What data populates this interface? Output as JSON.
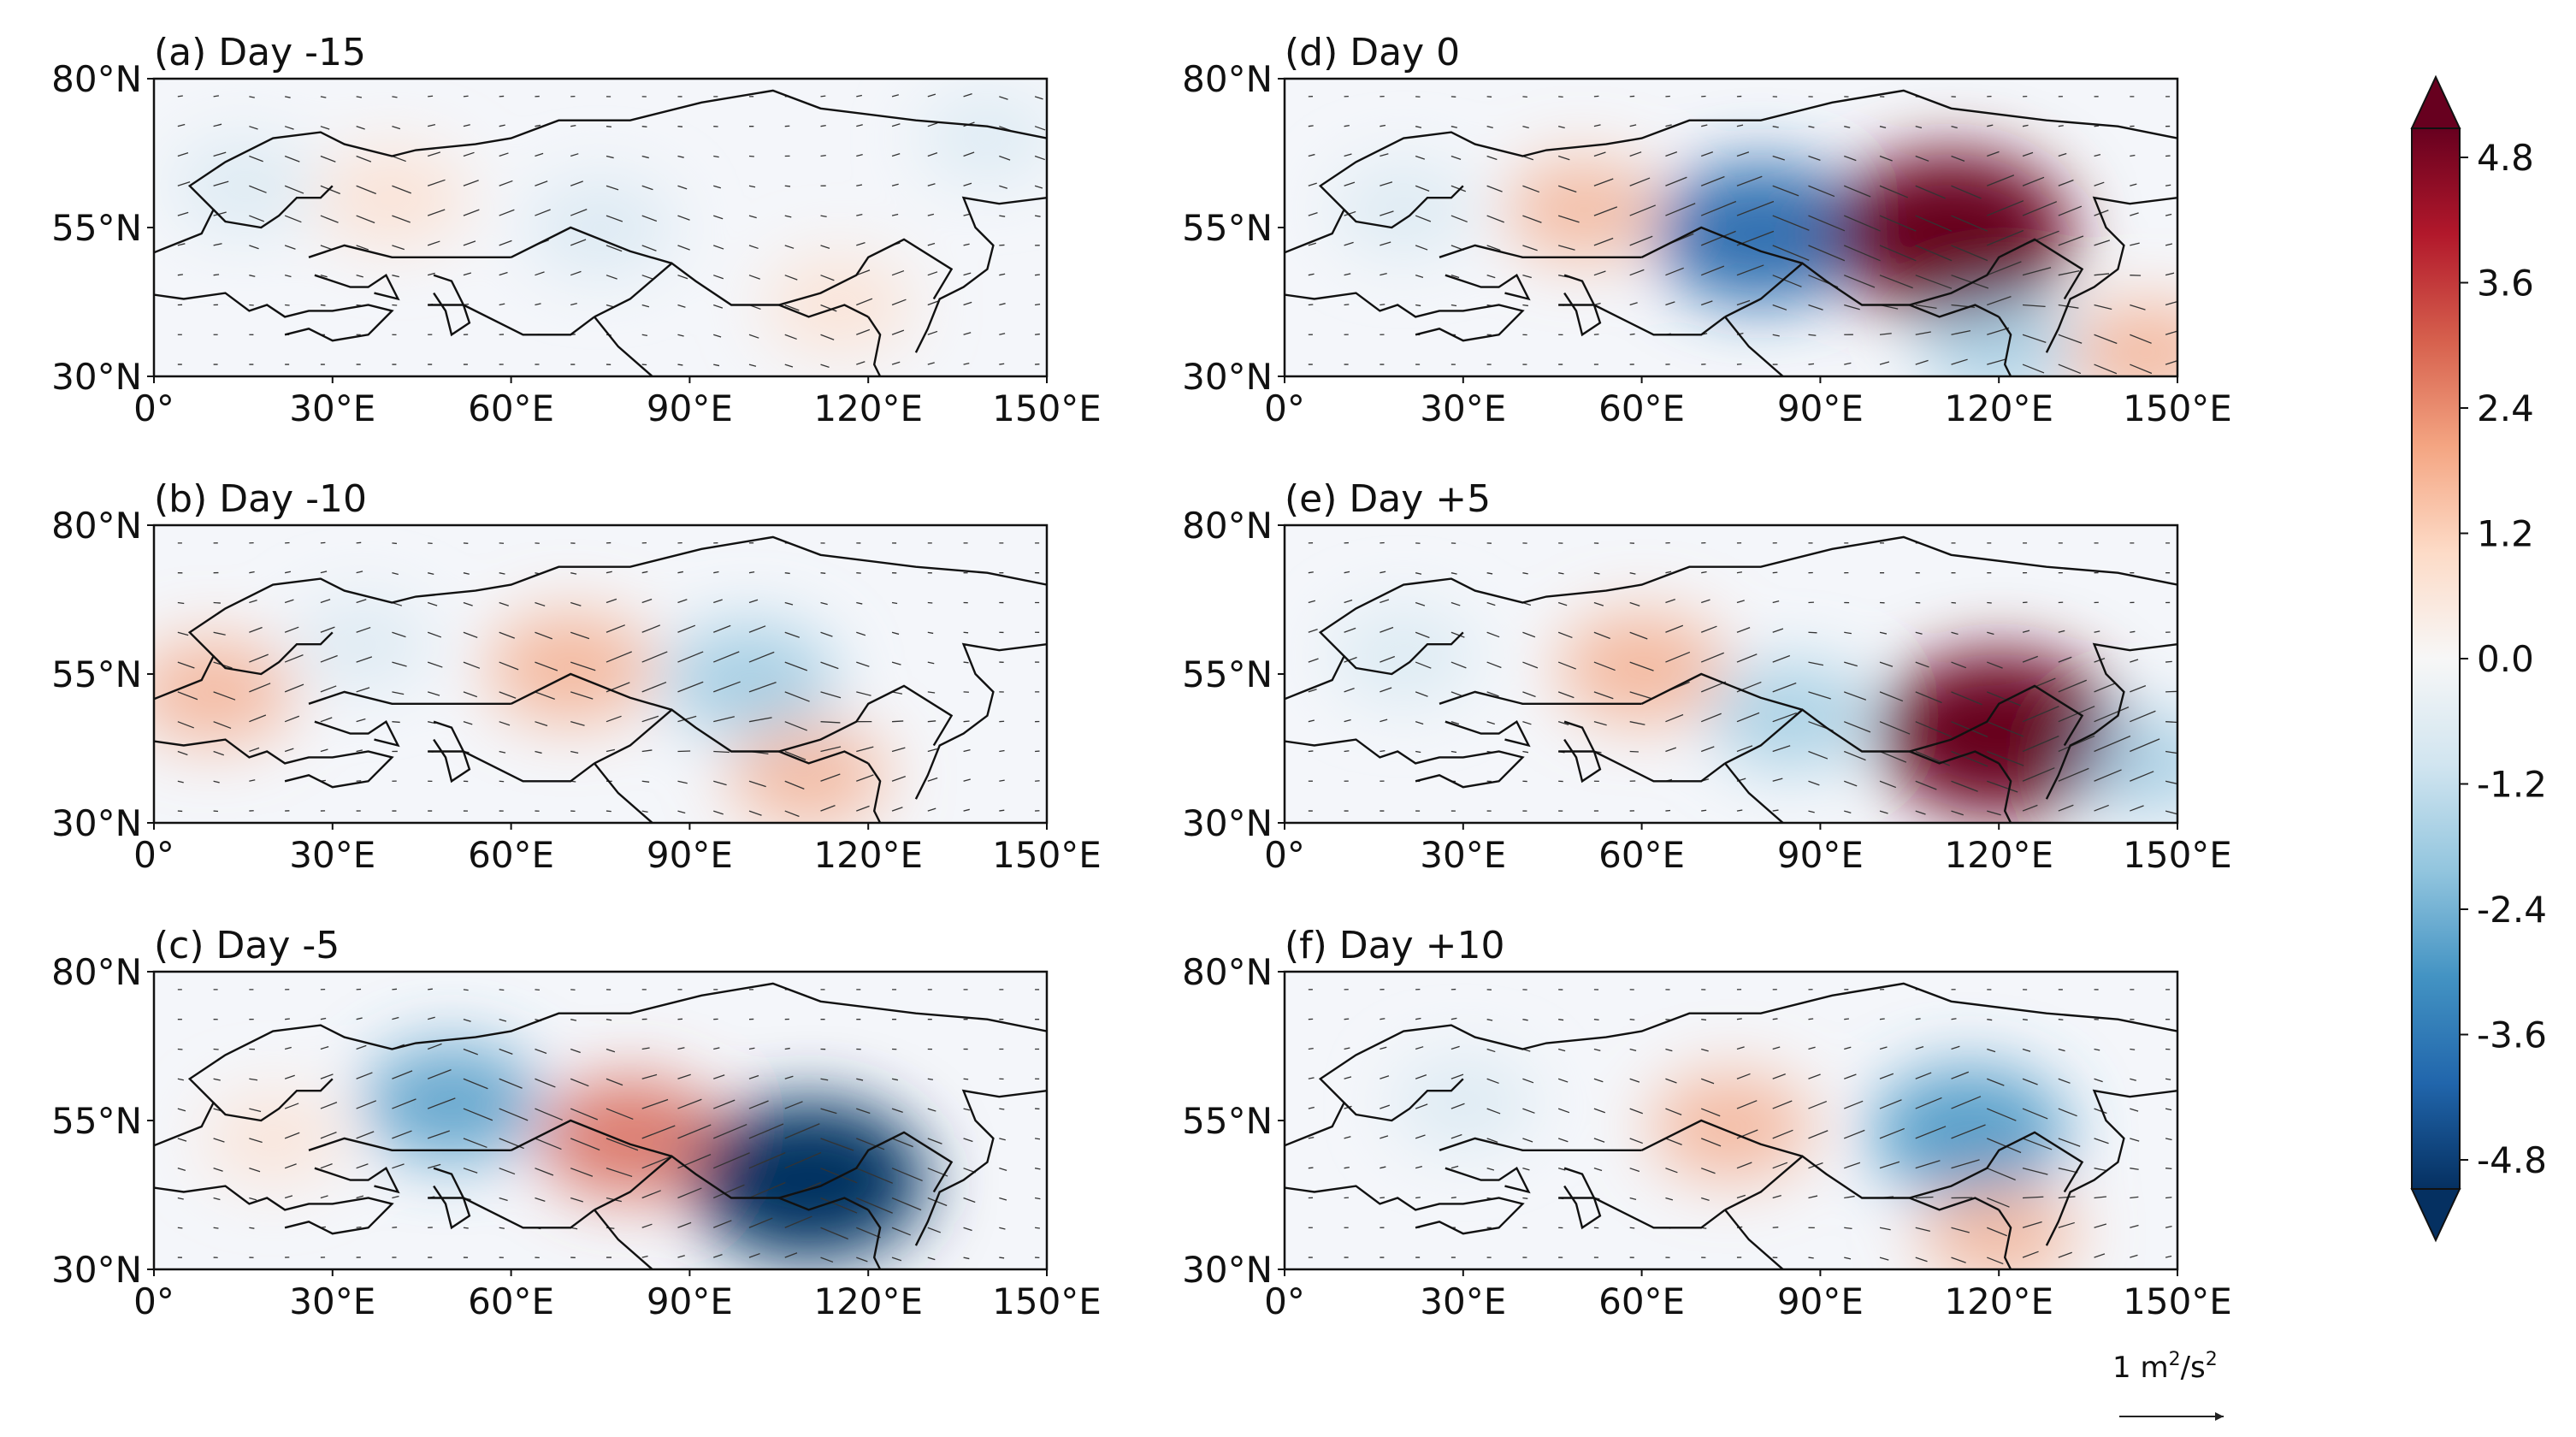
{
  "figure": {
    "panels": [
      {
        "label": "(a) Day -15"
      },
      {
        "label": "(b) Day -10"
      },
      {
        "label": "(c) Day -5"
      },
      {
        "label": "(d) Day 0"
      },
      {
        "label": "(e) Day +5"
      },
      {
        "label": "(f) Day +10"
      }
    ],
    "lat_ticks": [
      "30°N",
      "55°N",
      "80°N"
    ],
    "lon_ticks": [
      "0°",
      "30°E",
      "60°E",
      "90°E",
      "120°E",
      "150°E"
    ],
    "colorbar": {
      "ticks": [
        "4.8",
        "3.6",
        "2.4",
        "1.2",
        "0.0",
        "-1.2",
        "-2.4",
        "-3.6",
        "-4.8"
      ],
      "colors": [
        "#67001f",
        "#b2182b",
        "#d6604d",
        "#f4a582",
        "#fddbc7",
        "#f7f7f7",
        "#d1e5f0",
        "#92c5de",
        "#4393c3",
        "#2166ac",
        "#053061"
      ]
    },
    "reference_vector": {
      "label": "1 m",
      "sup1": "2",
      "mid": "/s",
      "sup2": "2"
    }
  },
  "chart_data": {
    "type": "heatmap",
    "title": "",
    "panels": [
      {
        "id": "a",
        "title": "(a) Day -15",
        "anomalies": [
          {
            "lon": 40,
            "lat": 60,
            "value": 1.4
          },
          {
            "lon": 75,
            "lat": 55,
            "value": -1.3
          },
          {
            "lon": 15,
            "lat": 62,
            "value": -1.1
          },
          {
            "lon": 115,
            "lat": 42,
            "value": 1.3
          },
          {
            "lon": 140,
            "lat": 70,
            "value": -0.8
          }
        ]
      },
      {
        "id": "b",
        "title": "(b) Day -10",
        "anomalies": [
          {
            "lon": 10,
            "lat": 52,
            "value": 1.8
          },
          {
            "lon": 70,
            "lat": 56,
            "value": 2.0
          },
          {
            "lon": 100,
            "lat": 54,
            "value": -2.2
          },
          {
            "lon": 110,
            "lat": 38,
            "value": 1.6
          },
          {
            "lon": 35,
            "lat": 60,
            "value": -0.9
          }
        ]
      },
      {
        "id": "c",
        "title": "(c) Day -5",
        "anomalies": [
          {
            "lon": 50,
            "lat": 58,
            "value": -2.4
          },
          {
            "lon": 80,
            "lat": 52,
            "value": 2.6
          },
          {
            "lon": 110,
            "lat": 45,
            "value": -4.8
          },
          {
            "lon": 20,
            "lat": 52,
            "value": 0.9
          }
        ]
      },
      {
        "id": "d",
        "title": "(d) Day 0",
        "anomalies": [
          {
            "lon": 20,
            "lat": 58,
            "value": -1.0
          },
          {
            "lon": 50,
            "lat": 58,
            "value": 1.5
          },
          {
            "lon": 80,
            "lat": 54,
            "value": -3.8
          },
          {
            "lon": 112,
            "lat": 54,
            "value": 5.0
          },
          {
            "lon": 120,
            "lat": 35,
            "value": -1.5
          },
          {
            "lon": 145,
            "lat": 34,
            "value": 1.6
          }
        ]
      },
      {
        "id": "e",
        "title": "(e) Day +5",
        "anomalies": [
          {
            "lon": 20,
            "lat": 58,
            "value": -1.2
          },
          {
            "lon": 60,
            "lat": 56,
            "value": 2.0
          },
          {
            "lon": 85,
            "lat": 48,
            "value": -1.8
          },
          {
            "lon": 120,
            "lat": 45,
            "value": 5.0
          },
          {
            "lon": 145,
            "lat": 40,
            "value": -1.5
          }
        ]
      },
      {
        "id": "f",
        "title": "(f) Day +10",
        "anomalies": [
          {
            "lon": 30,
            "lat": 58,
            "value": -1.0
          },
          {
            "lon": 75,
            "lat": 54,
            "value": 1.8
          },
          {
            "lon": 115,
            "lat": 53,
            "value": -3.2
          },
          {
            "lon": 120,
            "lat": 36,
            "value": 1.5
          }
        ]
      }
    ],
    "xlabel": "",
    "ylabel": "",
    "xlim": [
      0,
      150
    ],
    "ylim": [
      30,
      80
    ],
    "clim": [
      -4.8,
      4.8
    ],
    "units": "m2/s2"
  }
}
